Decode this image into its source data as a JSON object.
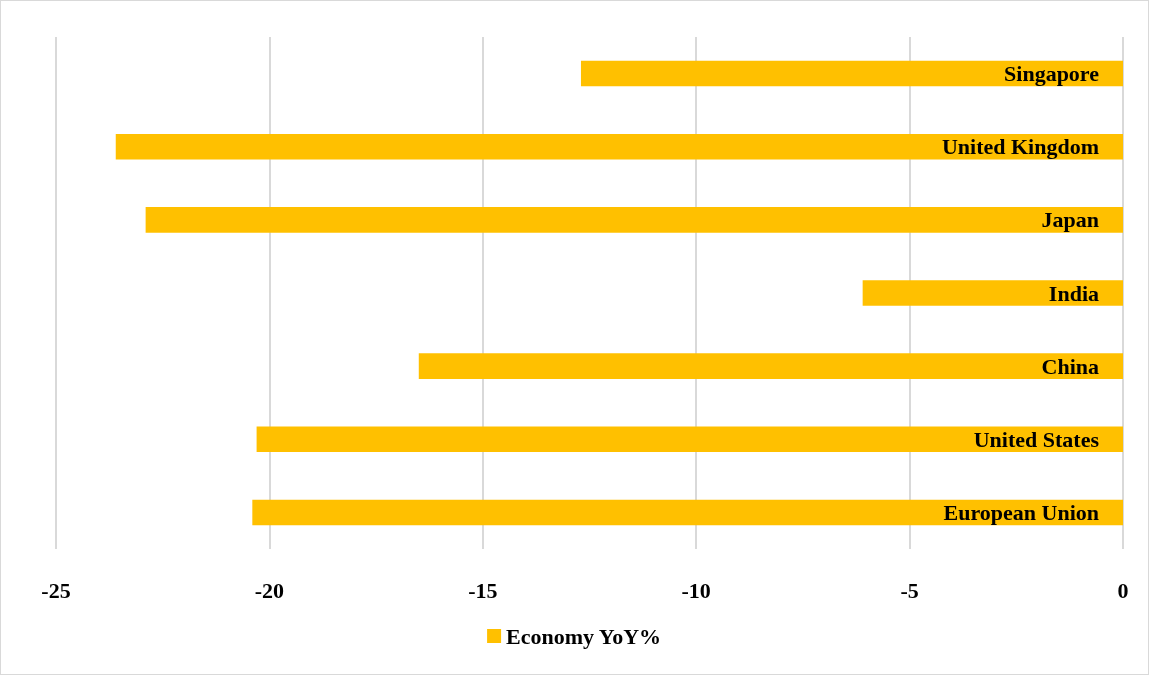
{
  "chart_data": {
    "type": "bar",
    "orientation": "horizontal",
    "categories": [
      "Singapore",
      "United Kingdom",
      "Japan",
      "India",
      "China",
      "United States",
      "European Union"
    ],
    "series": [
      {
        "name": "Economy YoY%",
        "color": "#ffc000",
        "values": [
          -12.7,
          -23.6,
          -22.9,
          -6.1,
          -16.5,
          -20.3,
          -20.4
        ]
      }
    ],
    "xlim": [
      -25,
      0
    ],
    "xticks": [
      -25,
      -20,
      -15,
      -10,
      -5,
      0
    ],
    "grid": "x",
    "legend": "bottom"
  }
}
